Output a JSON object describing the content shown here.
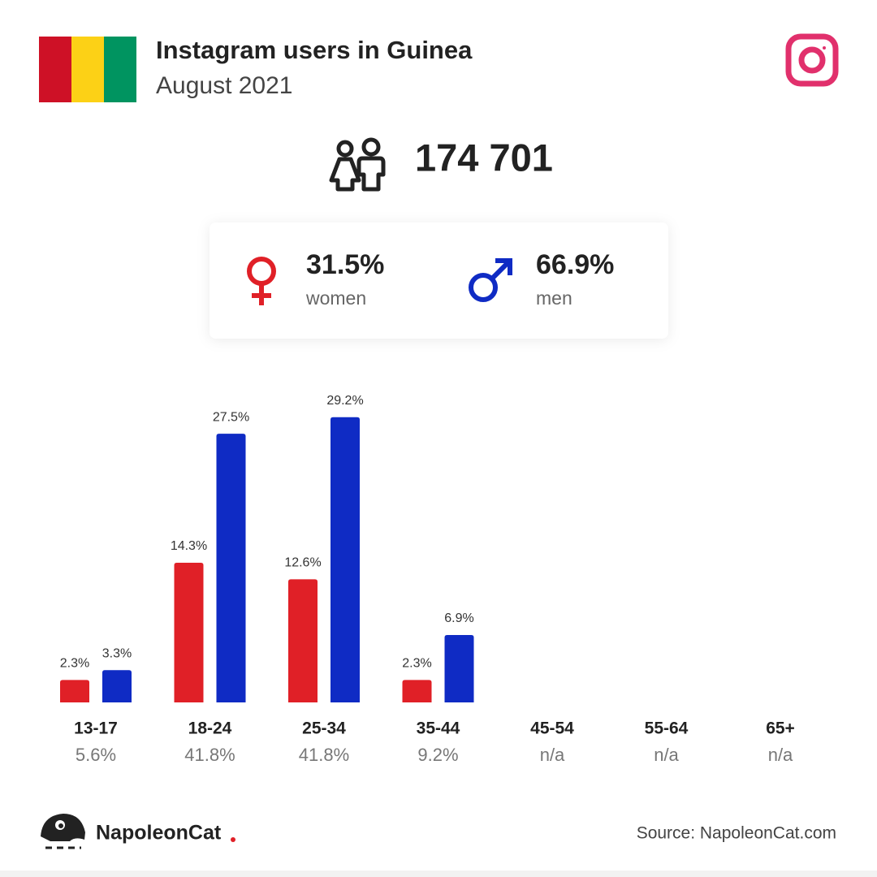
{
  "chart_data": {
    "type": "bar",
    "title": "Instagram users in Guinea",
    "subtitle": "August 2021",
    "total_users": {
      "value": 174701,
      "label": "174 701"
    },
    "categories": [
      "13-17",
      "18-24",
      "25-34",
      "35-44",
      "45-54",
      "55-64",
      "65+"
    ],
    "series": [
      {
        "name": "women",
        "color": "#e02027",
        "share": {
          "value": 31.5,
          "label": "31.5%"
        },
        "values": [
          2.3,
          14.3,
          12.6,
          2.3,
          null,
          null,
          null
        ],
        "value_labels": [
          "2.3%",
          "14.3%",
          "12.6%",
          "2.3%",
          null,
          null,
          null
        ]
      },
      {
        "name": "men",
        "color": "#0f2bc4",
        "share": {
          "value": 66.9,
          "label": "66.9%"
        },
        "values": [
          3.3,
          27.5,
          29.2,
          6.9,
          null,
          null,
          null
        ],
        "value_labels": [
          "3.3%",
          "27.5%",
          "29.2%",
          "6.9%",
          null,
          null,
          null
        ]
      }
    ],
    "category_totals": {
      "values": [
        5.6,
        41.8,
        41.8,
        9.2,
        null,
        null,
        null
      ],
      "value_labels": [
        "5.6%",
        "41.8%",
        "41.8%",
        "9.2%",
        "n/a",
        "n/a",
        "n/a"
      ]
    },
    "brand": "NapoleonCat",
    "source": "Source: NapoleonCat.com"
  }
}
